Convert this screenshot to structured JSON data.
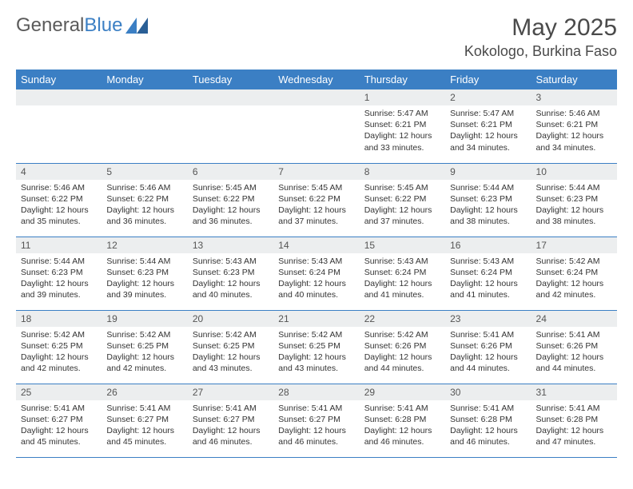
{
  "logo": {
    "text1": "General",
    "text2": "Blue"
  },
  "title": "May 2025",
  "location": "Kokologo, Burkina Faso",
  "colors": {
    "header_bg": "#3b7fc4",
    "header_text": "#ffffff",
    "daynum_bg": "#eceeef",
    "cell_border": "#3b7fc4",
    "logo_gray": "#5a5a5a",
    "logo_blue": "#3b7fc4"
  },
  "weekdays": [
    "Sunday",
    "Monday",
    "Tuesday",
    "Wednesday",
    "Thursday",
    "Friday",
    "Saturday"
  ],
  "weeks": [
    [
      {
        "n": "",
        "lines": []
      },
      {
        "n": "",
        "lines": []
      },
      {
        "n": "",
        "lines": []
      },
      {
        "n": "",
        "lines": []
      },
      {
        "n": "1",
        "lines": [
          "Sunrise: 5:47 AM",
          "Sunset: 6:21 PM",
          "Daylight: 12 hours and 33 minutes."
        ]
      },
      {
        "n": "2",
        "lines": [
          "Sunrise: 5:47 AM",
          "Sunset: 6:21 PM",
          "Daylight: 12 hours and 34 minutes."
        ]
      },
      {
        "n": "3",
        "lines": [
          "Sunrise: 5:46 AM",
          "Sunset: 6:21 PM",
          "Daylight: 12 hours and 34 minutes."
        ]
      }
    ],
    [
      {
        "n": "4",
        "lines": [
          "Sunrise: 5:46 AM",
          "Sunset: 6:22 PM",
          "Daylight: 12 hours and 35 minutes."
        ]
      },
      {
        "n": "5",
        "lines": [
          "Sunrise: 5:46 AM",
          "Sunset: 6:22 PM",
          "Daylight: 12 hours and 36 minutes."
        ]
      },
      {
        "n": "6",
        "lines": [
          "Sunrise: 5:45 AM",
          "Sunset: 6:22 PM",
          "Daylight: 12 hours and 36 minutes."
        ]
      },
      {
        "n": "7",
        "lines": [
          "Sunrise: 5:45 AM",
          "Sunset: 6:22 PM",
          "Daylight: 12 hours and 37 minutes."
        ]
      },
      {
        "n": "8",
        "lines": [
          "Sunrise: 5:45 AM",
          "Sunset: 6:22 PM",
          "Daylight: 12 hours and 37 minutes."
        ]
      },
      {
        "n": "9",
        "lines": [
          "Sunrise: 5:44 AM",
          "Sunset: 6:23 PM",
          "Daylight: 12 hours and 38 minutes."
        ]
      },
      {
        "n": "10",
        "lines": [
          "Sunrise: 5:44 AM",
          "Sunset: 6:23 PM",
          "Daylight: 12 hours and 38 minutes."
        ]
      }
    ],
    [
      {
        "n": "11",
        "lines": [
          "Sunrise: 5:44 AM",
          "Sunset: 6:23 PM",
          "Daylight: 12 hours and 39 minutes."
        ]
      },
      {
        "n": "12",
        "lines": [
          "Sunrise: 5:44 AM",
          "Sunset: 6:23 PM",
          "Daylight: 12 hours and 39 minutes."
        ]
      },
      {
        "n": "13",
        "lines": [
          "Sunrise: 5:43 AM",
          "Sunset: 6:23 PM",
          "Daylight: 12 hours and 40 minutes."
        ]
      },
      {
        "n": "14",
        "lines": [
          "Sunrise: 5:43 AM",
          "Sunset: 6:24 PM",
          "Daylight: 12 hours and 40 minutes."
        ]
      },
      {
        "n": "15",
        "lines": [
          "Sunrise: 5:43 AM",
          "Sunset: 6:24 PM",
          "Daylight: 12 hours and 41 minutes."
        ]
      },
      {
        "n": "16",
        "lines": [
          "Sunrise: 5:43 AM",
          "Sunset: 6:24 PM",
          "Daylight: 12 hours and 41 minutes."
        ]
      },
      {
        "n": "17",
        "lines": [
          "Sunrise: 5:42 AM",
          "Sunset: 6:24 PM",
          "Daylight: 12 hours and 42 minutes."
        ]
      }
    ],
    [
      {
        "n": "18",
        "lines": [
          "Sunrise: 5:42 AM",
          "Sunset: 6:25 PM",
          "Daylight: 12 hours and 42 minutes."
        ]
      },
      {
        "n": "19",
        "lines": [
          "Sunrise: 5:42 AM",
          "Sunset: 6:25 PM",
          "Daylight: 12 hours and 42 minutes."
        ]
      },
      {
        "n": "20",
        "lines": [
          "Sunrise: 5:42 AM",
          "Sunset: 6:25 PM",
          "Daylight: 12 hours and 43 minutes."
        ]
      },
      {
        "n": "21",
        "lines": [
          "Sunrise: 5:42 AM",
          "Sunset: 6:25 PM",
          "Daylight: 12 hours and 43 minutes."
        ]
      },
      {
        "n": "22",
        "lines": [
          "Sunrise: 5:42 AM",
          "Sunset: 6:26 PM",
          "Daylight: 12 hours and 44 minutes."
        ]
      },
      {
        "n": "23",
        "lines": [
          "Sunrise: 5:41 AM",
          "Sunset: 6:26 PM",
          "Daylight: 12 hours and 44 minutes."
        ]
      },
      {
        "n": "24",
        "lines": [
          "Sunrise: 5:41 AM",
          "Sunset: 6:26 PM",
          "Daylight: 12 hours and 44 minutes."
        ]
      }
    ],
    [
      {
        "n": "25",
        "lines": [
          "Sunrise: 5:41 AM",
          "Sunset: 6:27 PM",
          "Daylight: 12 hours and 45 minutes."
        ]
      },
      {
        "n": "26",
        "lines": [
          "Sunrise: 5:41 AM",
          "Sunset: 6:27 PM",
          "Daylight: 12 hours and 45 minutes."
        ]
      },
      {
        "n": "27",
        "lines": [
          "Sunrise: 5:41 AM",
          "Sunset: 6:27 PM",
          "Daylight: 12 hours and 46 minutes."
        ]
      },
      {
        "n": "28",
        "lines": [
          "Sunrise: 5:41 AM",
          "Sunset: 6:27 PM",
          "Daylight: 12 hours and 46 minutes."
        ]
      },
      {
        "n": "29",
        "lines": [
          "Sunrise: 5:41 AM",
          "Sunset: 6:28 PM",
          "Daylight: 12 hours and 46 minutes."
        ]
      },
      {
        "n": "30",
        "lines": [
          "Sunrise: 5:41 AM",
          "Sunset: 6:28 PM",
          "Daylight: 12 hours and 46 minutes."
        ]
      },
      {
        "n": "31",
        "lines": [
          "Sunrise: 5:41 AM",
          "Sunset: 6:28 PM",
          "Daylight: 12 hours and 47 minutes."
        ]
      }
    ]
  ]
}
